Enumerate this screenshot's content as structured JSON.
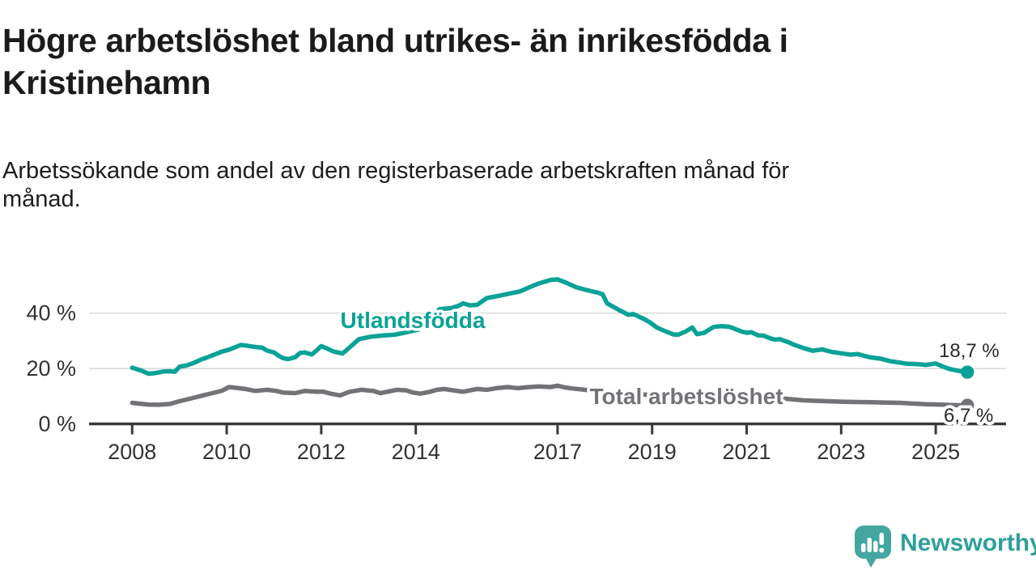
{
  "chart_data": {
    "type": "line",
    "title": "Högre arbetslöshet bland utrikes- än inrikesfödda i Kristinehamn",
    "title_lines": [
      "Högre arbetslöshet bland utrikes- än inrikesfödda i",
      "Kristinehamn"
    ],
    "subtitle": "Arbetssökande som andel av den registerbaserade arbetskraften månad för månad.",
    "subtitle_lines": [
      "Arbetssökande som andel av den registerbaserade arbetskraften månad för",
      "månad."
    ],
    "xlabel": "",
    "ylabel": "",
    "grid": "horizontal",
    "legend_position": "inline-labels",
    "x_range": [
      2008,
      2025.67
    ],
    "ylim": [
      0,
      58
    ],
    "x_ticks": [
      2008,
      2010,
      2012,
      2014,
      2017,
      2019,
      2021,
      2023,
      2025
    ],
    "x_tick_labels": [
      "2008",
      "2010",
      "2012",
      "2014",
      "2017",
      "2019",
      "2021",
      "2023",
      "2025"
    ],
    "y_ticks": [
      {
        "value": 0,
        "label": "0 %"
      },
      {
        "value": 20,
        "label": "20 %"
      },
      {
        "value": 40,
        "label": "40 %"
      }
    ],
    "series": [
      {
        "name": "Utlandsfödda",
        "color": "#0aa296",
        "end_value": 18.7,
        "end_label": "18,7 %",
        "points": [
          [
            2008.0,
            20.3
          ],
          [
            2008.2,
            19.2
          ],
          [
            2008.35,
            18.1
          ],
          [
            2008.5,
            18.4
          ],
          [
            2008.65,
            18.9
          ],
          [
            2008.8,
            19.0
          ],
          [
            2008.9,
            18.8
          ],
          [
            2009.0,
            20.6
          ],
          [
            2009.15,
            21.1
          ],
          [
            2009.3,
            22.0
          ],
          [
            2009.45,
            23.2
          ],
          [
            2009.6,
            24.1
          ],
          [
            2009.75,
            25.1
          ],
          [
            2009.9,
            26.1
          ],
          [
            2010.05,
            26.8
          ],
          [
            2010.15,
            27.5
          ],
          [
            2010.3,
            28.5
          ],
          [
            2010.4,
            28.3
          ],
          [
            2010.5,
            28.0
          ],
          [
            2010.65,
            27.7
          ],
          [
            2010.75,
            27.5
          ],
          [
            2010.85,
            26.5
          ],
          [
            2011.0,
            25.8
          ],
          [
            2011.1,
            24.6
          ],
          [
            2011.2,
            23.7
          ],
          [
            2011.3,
            23.4
          ],
          [
            2011.45,
            24.1
          ],
          [
            2011.55,
            25.6
          ],
          [
            2011.65,
            25.8
          ],
          [
            2011.8,
            25.1
          ],
          [
            2011.9,
            26.5
          ],
          [
            2012.0,
            28.1
          ],
          [
            2012.1,
            27.4
          ],
          [
            2012.25,
            26.2
          ],
          [
            2012.45,
            25.4
          ],
          [
            2012.6,
            27.6
          ],
          [
            2012.8,
            30.6
          ],
          [
            2013.05,
            31.5
          ],
          [
            2013.3,
            31.9
          ],
          [
            2013.55,
            32.2
          ],
          [
            2013.75,
            32.9
          ],
          [
            2014.05,
            34.0
          ],
          [
            2014.25,
            37.2
          ],
          [
            2014.5,
            41.4
          ],
          [
            2014.75,
            41.8
          ],
          [
            2014.9,
            42.6
          ],
          [
            2015.0,
            43.5
          ],
          [
            2015.15,
            42.8
          ],
          [
            2015.3,
            43.0
          ],
          [
            2015.5,
            45.4
          ],
          [
            2015.65,
            45.9
          ],
          [
            2015.8,
            46.4
          ],
          [
            2016.05,
            47.3
          ],
          [
            2016.2,
            47.8
          ],
          [
            2016.4,
            49.3
          ],
          [
            2016.6,
            50.7
          ],
          [
            2016.85,
            52.0
          ],
          [
            2017.0,
            52.2
          ],
          [
            2017.15,
            51.2
          ],
          [
            2017.4,
            49.3
          ],
          [
            2017.6,
            48.4
          ],
          [
            2017.85,
            47.4
          ],
          [
            2017.95,
            46.8
          ],
          [
            2018.05,
            43.5
          ],
          [
            2018.3,
            41.1
          ],
          [
            2018.5,
            39.4
          ],
          [
            2018.6,
            39.7
          ],
          [
            2018.85,
            37.7
          ],
          [
            2018.95,
            36.7
          ],
          [
            2019.1,
            34.8
          ],
          [
            2019.3,
            33.3
          ],
          [
            2019.45,
            32.3
          ],
          [
            2019.55,
            32.2
          ],
          [
            2019.7,
            33.3
          ],
          [
            2019.85,
            34.8
          ],
          [
            2019.95,
            32.4
          ],
          [
            2020.1,
            32.9
          ],
          [
            2020.3,
            35.0
          ],
          [
            2020.45,
            35.3
          ],
          [
            2020.55,
            35.2
          ],
          [
            2020.65,
            35.0
          ],
          [
            2020.75,
            34.3
          ],
          [
            2020.9,
            33.3
          ],
          [
            2021.0,
            32.9
          ],
          [
            2021.1,
            33.1
          ],
          [
            2021.25,
            31.9
          ],
          [
            2021.35,
            31.9
          ],
          [
            2021.5,
            30.9
          ],
          [
            2021.6,
            30.4
          ],
          [
            2021.7,
            30.6
          ],
          [
            2021.8,
            30.0
          ],
          [
            2021.9,
            29.4
          ],
          [
            2022.0,
            28.6
          ],
          [
            2022.2,
            27.4
          ],
          [
            2022.4,
            26.4
          ],
          [
            2022.6,
            26.9
          ],
          [
            2022.8,
            26.0
          ],
          [
            2023.0,
            25.5
          ],
          [
            2023.2,
            25.0
          ],
          [
            2023.35,
            25.2
          ],
          [
            2023.6,
            24.1
          ],
          [
            2023.85,
            23.5
          ],
          [
            2024.05,
            22.6
          ],
          [
            2024.25,
            22.1
          ],
          [
            2024.4,
            21.7
          ],
          [
            2024.6,
            21.6
          ],
          [
            2024.8,
            21.3
          ],
          [
            2025.0,
            21.8
          ],
          [
            2025.15,
            20.7
          ],
          [
            2025.3,
            19.8
          ],
          [
            2025.5,
            19.1
          ],
          [
            2025.67,
            18.7
          ]
        ]
      },
      {
        "name": "Total arbetslöshet",
        "color": "#737377",
        "end_value": 6.7,
        "end_label": "6,7 %",
        "points": [
          [
            2008.0,
            7.6
          ],
          [
            2008.15,
            7.3
          ],
          [
            2008.35,
            7.0
          ],
          [
            2008.55,
            6.9
          ],
          [
            2008.8,
            7.2
          ],
          [
            2009.0,
            8.2
          ],
          [
            2009.25,
            9.2
          ],
          [
            2009.5,
            10.3
          ],
          [
            2009.7,
            11.1
          ],
          [
            2009.9,
            12.0
          ],
          [
            2010.05,
            13.3
          ],
          [
            2010.2,
            13.0
          ],
          [
            2010.4,
            12.6
          ],
          [
            2010.6,
            11.9
          ],
          [
            2010.85,
            12.3
          ],
          [
            2011.05,
            11.9
          ],
          [
            2011.2,
            11.3
          ],
          [
            2011.45,
            11.1
          ],
          [
            2011.65,
            11.9
          ],
          [
            2011.9,
            11.6
          ],
          [
            2012.05,
            11.6
          ],
          [
            2012.2,
            10.9
          ],
          [
            2012.4,
            10.3
          ],
          [
            2012.6,
            11.6
          ],
          [
            2012.85,
            12.3
          ],
          [
            2013.1,
            11.9
          ],
          [
            2013.25,
            11.1
          ],
          [
            2013.4,
            11.6
          ],
          [
            2013.6,
            12.3
          ],
          [
            2013.8,
            12.1
          ],
          [
            2013.95,
            11.3
          ],
          [
            2014.1,
            10.9
          ],
          [
            2014.3,
            11.6
          ],
          [
            2014.45,
            12.3
          ],
          [
            2014.6,
            12.6
          ],
          [
            2014.8,
            12.1
          ],
          [
            2015.0,
            11.6
          ],
          [
            2015.15,
            12.1
          ],
          [
            2015.3,
            12.6
          ],
          [
            2015.5,
            12.3
          ],
          [
            2015.7,
            12.9
          ],
          [
            2015.95,
            13.3
          ],
          [
            2016.15,
            12.9
          ],
          [
            2016.4,
            13.3
          ],
          [
            2016.6,
            13.5
          ],
          [
            2016.85,
            13.3
          ],
          [
            2017.0,
            13.8
          ],
          [
            2017.15,
            13.2
          ],
          [
            2017.3,
            12.8
          ],
          [
            2017.7,
            12.1
          ],
          [
            2018.1,
            11.4
          ],
          [
            2018.5,
            10.9
          ],
          [
            2019.0,
            10.4
          ],
          [
            2019.5,
            10.0
          ],
          [
            2019.9,
            10.1
          ],
          [
            2020.3,
            11.0
          ],
          [
            2020.5,
            11.2
          ],
          [
            2020.9,
            10.6
          ],
          [
            2021.3,
            9.8
          ],
          [
            2021.7,
            9.3
          ],
          [
            2022.0,
            8.8
          ],
          [
            2022.2,
            8.5
          ],
          [
            2022.5,
            8.3
          ],
          [
            2023.0,
            8.0
          ],
          [
            2023.35,
            7.9
          ],
          [
            2023.65,
            7.8
          ],
          [
            2024.0,
            7.7
          ],
          [
            2024.25,
            7.6
          ],
          [
            2024.55,
            7.3
          ],
          [
            2024.8,
            7.1
          ],
          [
            2025.1,
            7.0
          ],
          [
            2025.35,
            6.8
          ],
          [
            2025.67,
            6.7
          ]
        ]
      }
    ],
    "colors": {
      "grid_line": "#d9d9d9",
      "axis_line": "#3a3a3a",
      "tick_text": "#333333",
      "value_label_text": "#2b2b2b"
    }
  },
  "footer": {
    "logo_text": "Newsworthy",
    "logo_bubble_color": "#43a6a1",
    "logo_text_color": "#2f9f9b"
  }
}
